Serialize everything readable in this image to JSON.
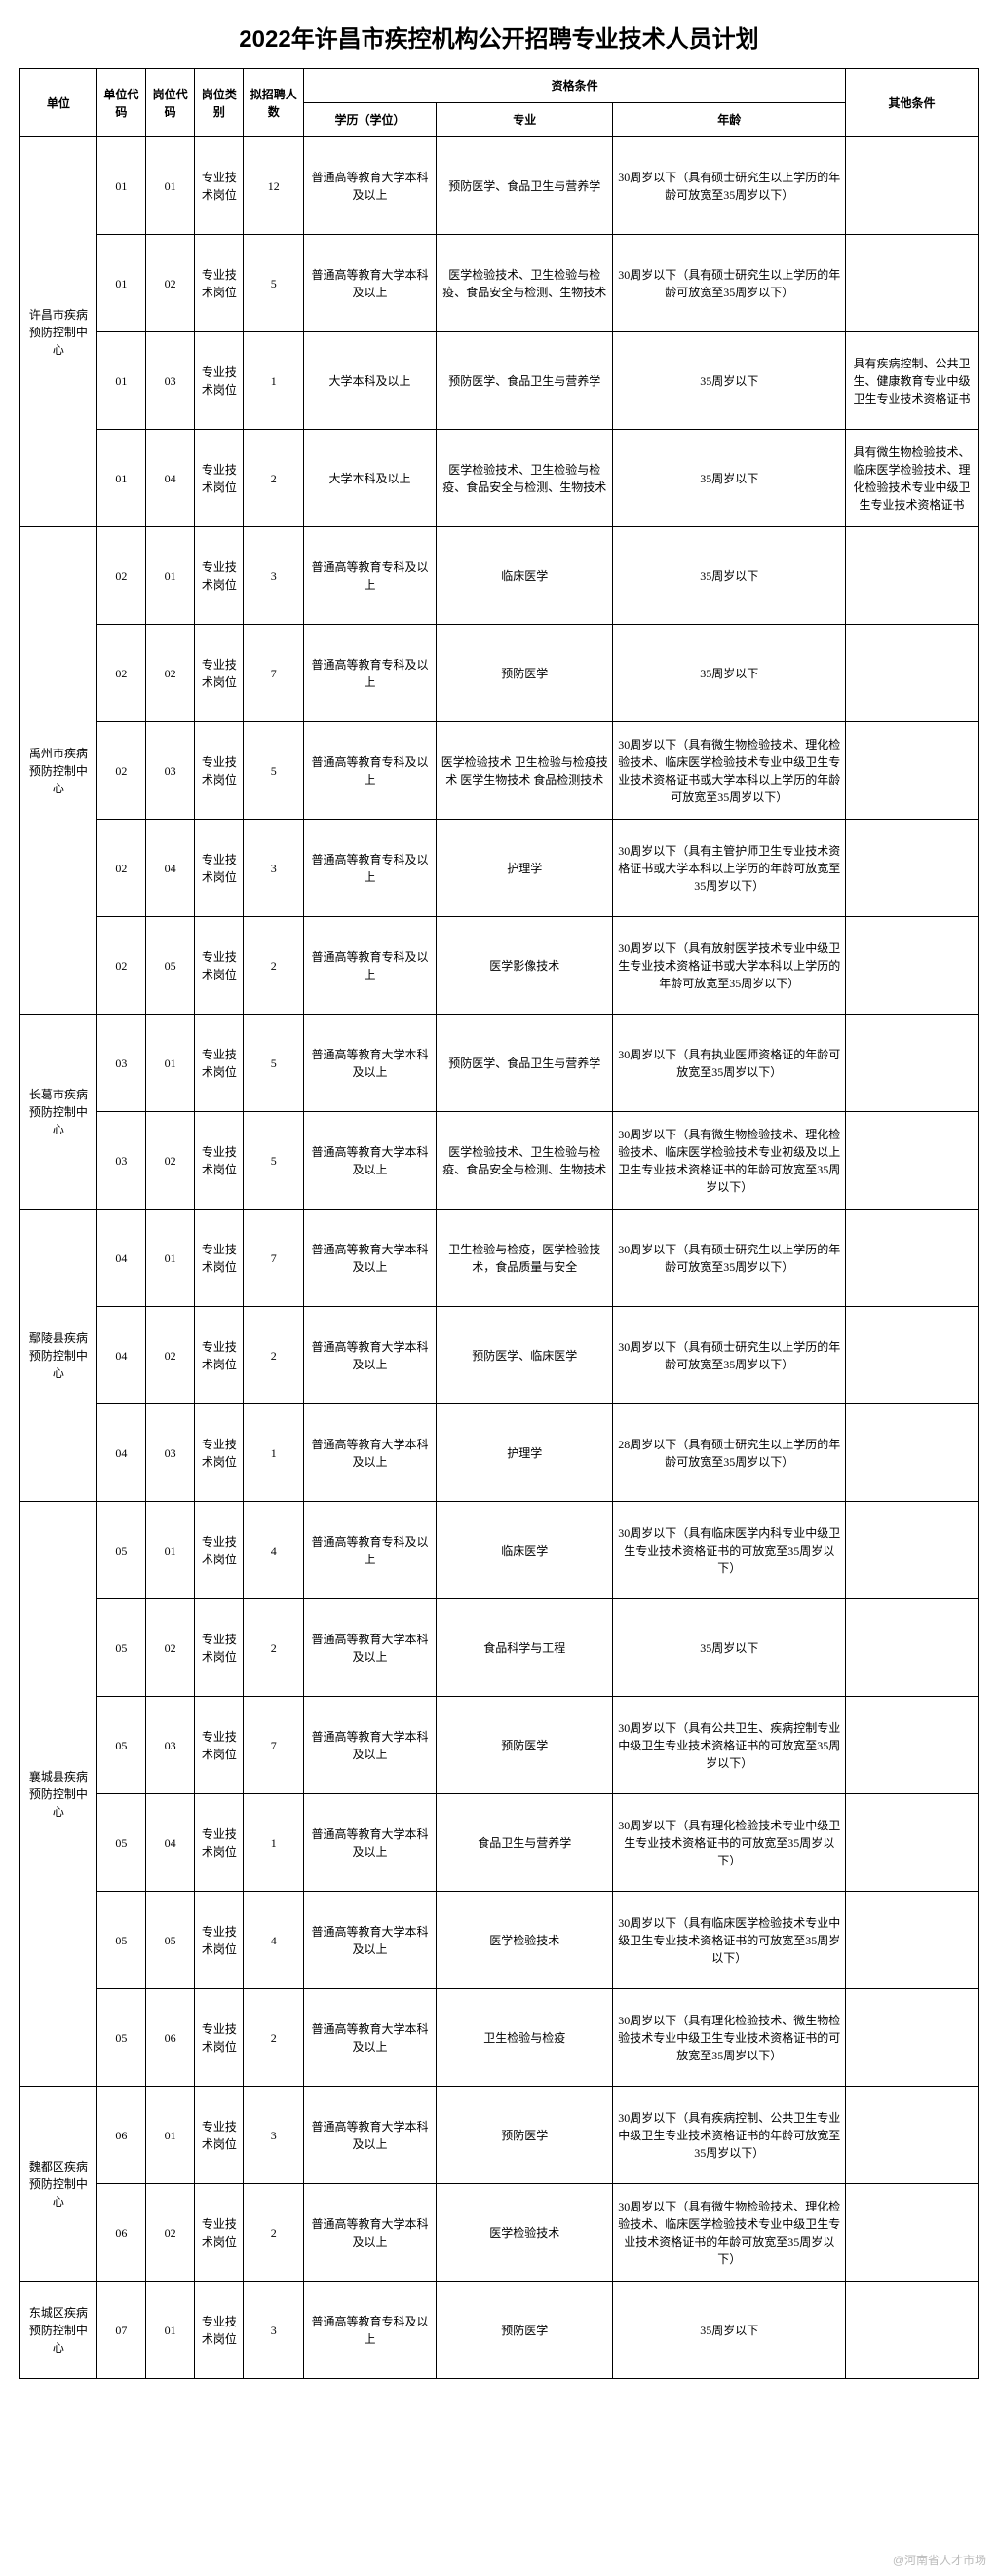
{
  "title": "2022年许昌市疾控机构公开招聘专业技术人员计划",
  "watermark": "@河南省人才市场",
  "headers": {
    "unit": "单位",
    "unitCode": "单位代码",
    "postCode": "岗位代码",
    "postType": "岗位类别",
    "count": "拟招聘人数",
    "qual": "资格条件",
    "edu": "学历（学位）",
    "major": "专业",
    "age": "年龄",
    "other": "其他条件"
  },
  "units": [
    {
      "name": "许昌市疾病预防控制中心",
      "rows": [
        {
          "uc": "01",
          "pc": "01",
          "type": "专业技术岗位",
          "cnt": "12",
          "edu": "普通高等教育大学本科及以上",
          "major": "预防医学、食品卫生与营养学",
          "age": "30周岁以下（具有硕士研究生以上学历的年龄可放宽至35周岁以下）",
          "other": ""
        },
        {
          "uc": "01",
          "pc": "02",
          "type": "专业技术岗位",
          "cnt": "5",
          "edu": "普通高等教育大学本科及以上",
          "major": "医学检验技术、卫生检验与检疫、食品安全与检测、生物技术",
          "age": "30周岁以下（具有硕士研究生以上学历的年龄可放宽至35周岁以下）",
          "other": ""
        },
        {
          "uc": "01",
          "pc": "03",
          "type": "专业技术岗位",
          "cnt": "1",
          "edu": "大学本科及以上",
          "major": "预防医学、食品卫生与营养学",
          "age": "35周岁以下",
          "other": "具有疾病控制、公共卫生、健康教育专业中级卫生专业技术资格证书"
        },
        {
          "uc": "01",
          "pc": "04",
          "type": "专业技术岗位",
          "cnt": "2",
          "edu": "大学本科及以上",
          "major": "医学检验技术、卫生检验与检疫、食品安全与检测、生物技术",
          "age": "35周岁以下",
          "other": "具有微生物检验技术、临床医学检验技术、理化检验技术专业中级卫生专业技术资格证书"
        }
      ]
    },
    {
      "name": "禹州市疾病预防控制中心",
      "rows": [
        {
          "uc": "02",
          "pc": "01",
          "type": "专业技术岗位",
          "cnt": "3",
          "edu": "普通高等教育专科及以上",
          "major": "临床医学",
          "age": "35周岁以下",
          "other": ""
        },
        {
          "uc": "02",
          "pc": "02",
          "type": "专业技术岗位",
          "cnt": "7",
          "edu": "普通高等教育专科及以上",
          "major": "预防医学",
          "age": "35周岁以下",
          "other": ""
        },
        {
          "uc": "02",
          "pc": "03",
          "type": "专业技术岗位",
          "cnt": "5",
          "edu": "普通高等教育专科及以上",
          "major": "医学检验技术 卫生检验与检疫技术 医学生物技术 食品检测技术",
          "age": "30周岁以下（具有微生物检验技术、理化检验技术、临床医学检验技术专业中级卫生专业技术资格证书或大学本科以上学历的年龄可放宽至35周岁以下）",
          "other": ""
        },
        {
          "uc": "02",
          "pc": "04",
          "type": "专业技术岗位",
          "cnt": "3",
          "edu": "普通高等教育专科及以上",
          "major": "护理学",
          "age": "30周岁以下（具有主管护师卫生专业技术资格证书或大学本科以上学历的年龄可放宽至35周岁以下）",
          "other": ""
        },
        {
          "uc": "02",
          "pc": "05",
          "type": "专业技术岗位",
          "cnt": "2",
          "edu": "普通高等教育专科及以上",
          "major": "医学影像技术",
          "age": "30周岁以下（具有放射医学技术专业中级卫生专业技术资格证书或大学本科以上学历的年龄可放宽至35周岁以下）",
          "other": ""
        }
      ]
    },
    {
      "name": "长葛市疾病预防控制中心",
      "rows": [
        {
          "uc": "03",
          "pc": "01",
          "type": "专业技术岗位",
          "cnt": "5",
          "edu": "普通高等教育大学本科及以上",
          "major": "预防医学、食品卫生与营养学",
          "age": "30周岁以下（具有执业医师资格证的年龄可放宽至35周岁以下）",
          "other": ""
        },
        {
          "uc": "03",
          "pc": "02",
          "type": "专业技术岗位",
          "cnt": "5",
          "edu": "普通高等教育大学本科及以上",
          "major": "医学检验技术、卫生检验与检疫、食品安全与检测、生物技术",
          "age": "30周岁以下（具有微生物检验技术、理化检验技术、临床医学检验技术专业初级及以上卫生专业技术资格证书的年龄可放宽至35周岁以下）",
          "other": ""
        }
      ]
    },
    {
      "name": "鄢陵县疾病预防控制中心",
      "rows": [
        {
          "uc": "04",
          "pc": "01",
          "type": "专业技术岗位",
          "cnt": "7",
          "edu": "普通高等教育大学本科及以上",
          "major": "卫生检验与检疫，医学检验技术，食品质量与安全",
          "age": "30周岁以下（具有硕士研究生以上学历的年龄可放宽至35周岁以下）",
          "other": ""
        },
        {
          "uc": "04",
          "pc": "02",
          "type": "专业技术岗位",
          "cnt": "2",
          "edu": "普通高等教育大学本科及以上",
          "major": "预防医学、临床医学",
          "age": "30周岁以下（具有硕士研究生以上学历的年龄可放宽至35周岁以下）",
          "other": ""
        },
        {
          "uc": "04",
          "pc": "03",
          "type": "专业技术岗位",
          "cnt": "1",
          "edu": "普通高等教育大学本科及以上",
          "major": "护理学",
          "age": "28周岁以下（具有硕士研究生以上学历的年龄可放宽至35周岁以下）",
          "other": ""
        }
      ]
    },
    {
      "name": "襄城县疾病预防控制中心",
      "rows": [
        {
          "uc": "05",
          "pc": "01",
          "type": "专业技术岗位",
          "cnt": "4",
          "edu": "普通高等教育专科及以上",
          "major": "临床医学",
          "age": "30周岁以下（具有临床医学内科专业中级卫生专业技术资格证书的可放宽至35周岁以下）",
          "other": ""
        },
        {
          "uc": "05",
          "pc": "02",
          "type": "专业技术岗位",
          "cnt": "2",
          "edu": "普通高等教育大学本科及以上",
          "major": "食品科学与工程",
          "age": "35周岁以下",
          "other": ""
        },
        {
          "uc": "05",
          "pc": "03",
          "type": "专业技术岗位",
          "cnt": "7",
          "edu": "普通高等教育大学本科及以上",
          "major": "预防医学",
          "age": "30周岁以下（具有公共卫生、疾病控制专业中级卫生专业技术资格证书的可放宽至35周岁以下）",
          "other": ""
        },
        {
          "uc": "05",
          "pc": "04",
          "type": "专业技术岗位",
          "cnt": "1",
          "edu": "普通高等教育大学本科及以上",
          "major": "食品卫生与营养学",
          "age": "30周岁以下（具有理化检验技术专业中级卫生专业技术资格证书的可放宽至35周岁以下）",
          "other": ""
        },
        {
          "uc": "05",
          "pc": "05",
          "type": "专业技术岗位",
          "cnt": "4",
          "edu": "普通高等教育大学本科及以上",
          "major": "医学检验技术",
          "age": "30周岁以下（具有临床医学检验技术专业中级卫生专业技术资格证书的可放宽至35周岁以下）",
          "other": ""
        },
        {
          "uc": "05",
          "pc": "06",
          "type": "专业技术岗位",
          "cnt": "2",
          "edu": "普通高等教育大学本科及以上",
          "major": "卫生检验与检疫",
          "age": "30周岁以下（具有理化检验技术、微生物检验技术专业中级卫生专业技术资格证书的可放宽至35周岁以下）",
          "other": ""
        }
      ]
    },
    {
      "name": "魏都区疾病预防控制中心",
      "rows": [
        {
          "uc": "06",
          "pc": "01",
          "type": "专业技术岗位",
          "cnt": "3",
          "edu": "普通高等教育大学本科及以上",
          "major": "预防医学",
          "age": "30周岁以下（具有疾病控制、公共卫生专业中级卫生专业技术资格证书的年龄可放宽至35周岁以下）",
          "other": ""
        },
        {
          "uc": "06",
          "pc": "02",
          "type": "专业技术岗位",
          "cnt": "2",
          "edu": "普通高等教育大学本科及以上",
          "major": "医学检验技术",
          "age": "30周岁以下（具有微生物检验技术、理化检验技术、临床医学检验技术专业中级卫生专业技术资格证书的年龄可放宽至35周岁以下）",
          "other": ""
        }
      ]
    },
    {
      "name": "东城区疾病预防控制中心",
      "rows": [
        {
          "uc": "07",
          "pc": "01",
          "type": "专业技术岗位",
          "cnt": "3",
          "edu": "普通高等教育专科及以上",
          "major": "预防医学",
          "age": "35周岁以下",
          "other": ""
        }
      ]
    }
  ]
}
